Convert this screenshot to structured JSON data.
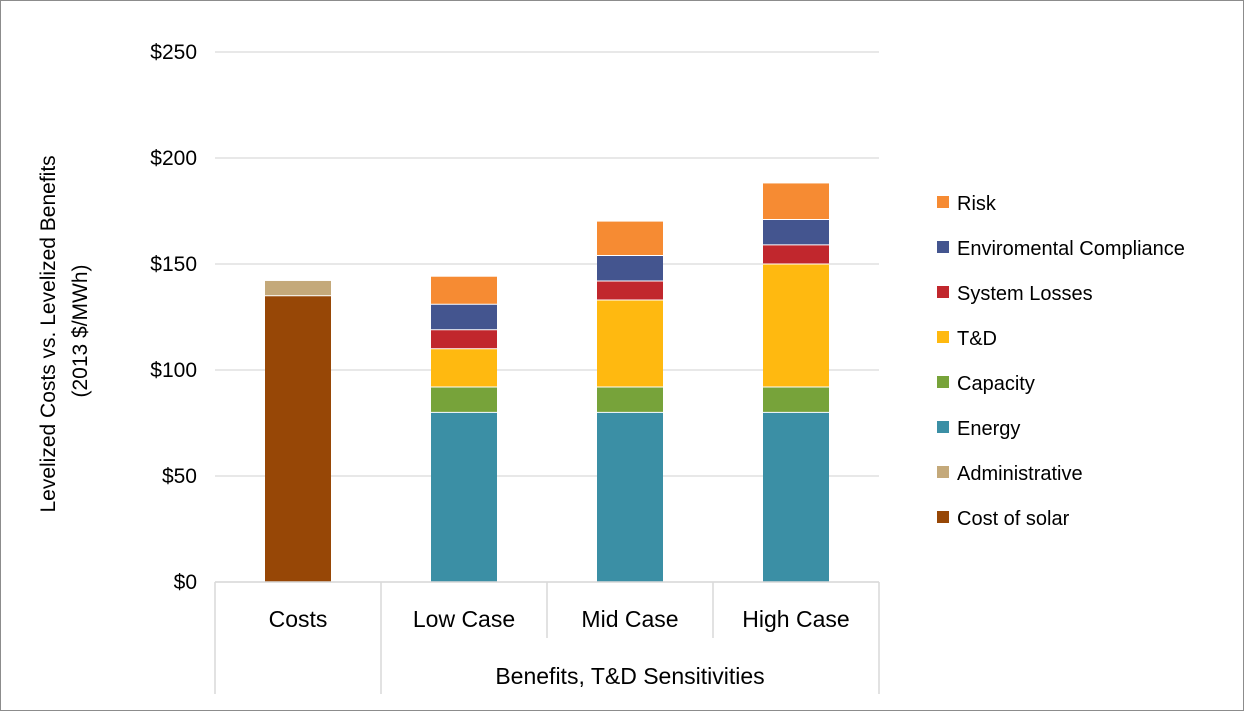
{
  "chart_data": {
    "type": "bar",
    "stacked": true,
    "ylabel_line1": "Levelized Costs vs. Levelized Benefits",
    "ylabel_line2": "(2013 $/MWh)",
    "ylim": [
      0,
      250
    ],
    "yticks": [
      "$0",
      "$50",
      "$100",
      "$150",
      "$200",
      "$250"
    ],
    "ytick_values": [
      0,
      50,
      100,
      150,
      200,
      250
    ],
    "categories": [
      "Costs",
      "Low Case",
      "Mid Case",
      "High Case"
    ],
    "group_label": "Benefits, T&D Sensitivities",
    "grid": true,
    "legend_position": "right",
    "series": [
      {
        "name": "Cost of solar",
        "color": "#974706",
        "values": [
          135,
          0,
          0,
          0
        ]
      },
      {
        "name": "Administrative",
        "color": "#C4A97A",
        "values": [
          7,
          0,
          0,
          0
        ]
      },
      {
        "name": "Energy",
        "color": "#3B8FA5",
        "values": [
          0,
          80,
          80,
          80
        ]
      },
      {
        "name": "Capacity",
        "color": "#77A33A",
        "values": [
          0,
          12,
          12,
          12
        ]
      },
      {
        "name": "T&D",
        "color": "#FFB910",
        "values": [
          0,
          18,
          41,
          58
        ]
      },
      {
        "name": "System Losses",
        "color": "#C1272D",
        "values": [
          0,
          9,
          9,
          9
        ]
      },
      {
        "name": "Enviromental Compliance",
        "color": "#44558F",
        "values": [
          0,
          12,
          12,
          12
        ]
      },
      {
        "name": "Risk",
        "color": "#F68B33",
        "values": [
          0,
          13,
          16,
          17
        ]
      }
    ]
  }
}
